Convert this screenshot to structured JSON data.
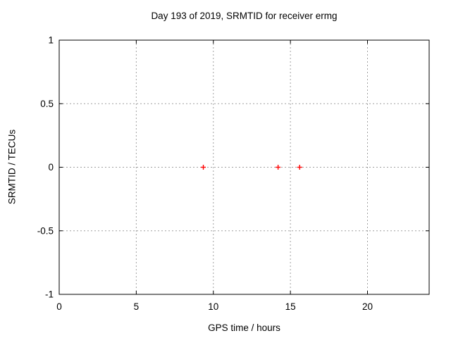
{
  "chart_data": {
    "type": "scatter",
    "title": "Day 193 of 2019, SRMTID for receiver ermg",
    "xlabel": "GPS time / hours",
    "ylabel": "SRMTID / TECUs",
    "xlim": [
      0,
      24
    ],
    "ylim": [
      -1,
      1
    ],
    "x_ticks": [
      {
        "value": 0,
        "label": "0"
      },
      {
        "value": 5,
        "label": "5"
      },
      {
        "value": 10,
        "label": "10"
      },
      {
        "value": 15,
        "label": "15"
      },
      {
        "value": 20,
        "label": "20"
      }
    ],
    "y_ticks": [
      {
        "value": -1,
        "label": "-1"
      },
      {
        "value": -0.5,
        "label": "-0.5"
      },
      {
        "value": 0,
        "label": "0"
      },
      {
        "value": 0.5,
        "label": "0.5"
      },
      {
        "value": 1,
        "label": "1"
      }
    ],
    "grid": true,
    "legend": "none",
    "series": [
      {
        "name": "SRMTID",
        "marker": "plus",
        "color": "#ff0000",
        "points": [
          {
            "x": 9.35,
            "y": 0
          },
          {
            "x": 14.2,
            "y": 0
          },
          {
            "x": 15.6,
            "y": 0
          }
        ]
      }
    ],
    "colors": {
      "background": "#ffffff",
      "border": "#000000",
      "grid": "#a0a0a0",
      "text": "#000000",
      "marker": "#ff0000"
    }
  }
}
